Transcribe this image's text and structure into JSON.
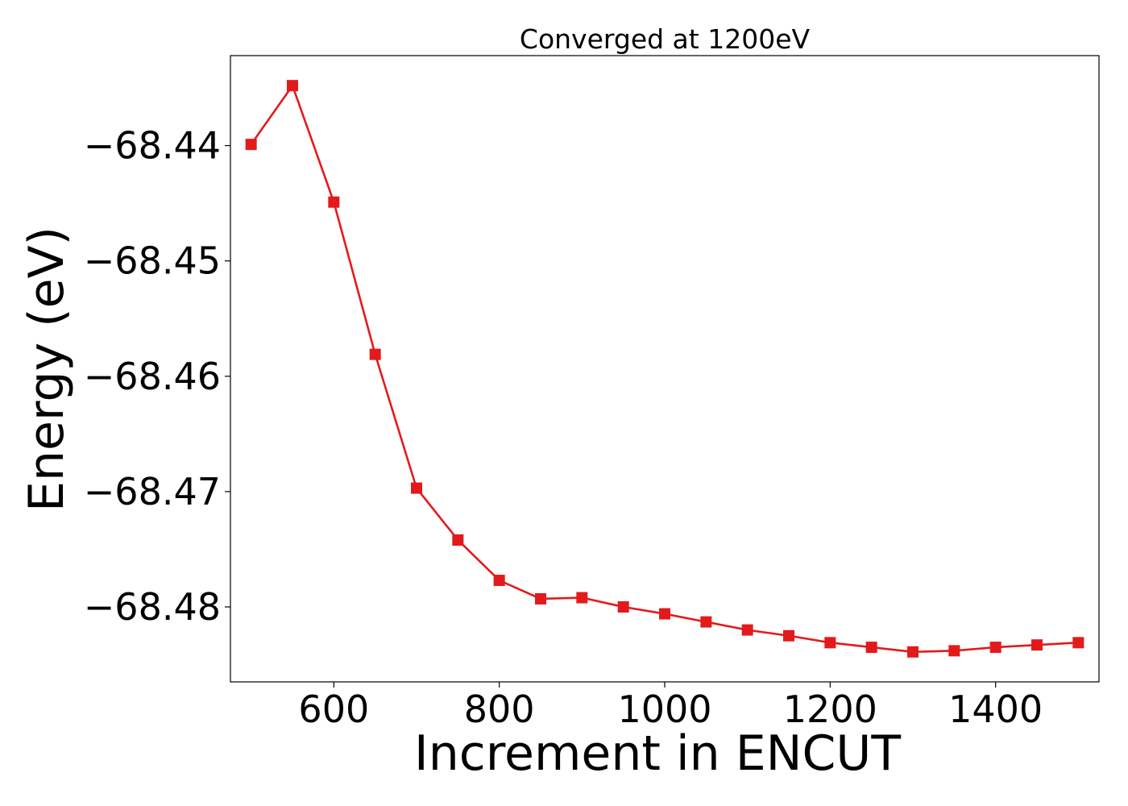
{
  "chart_data": {
    "type": "line",
    "title": "Converged at 1200eV",
    "xlabel": "Increment in ENCUT",
    "ylabel": "Energy (eV)",
    "xlim": [
      475,
      1525
    ],
    "ylim": [
      -68.4865,
      -68.4322
    ],
    "xticks": [
      600,
      800,
      1000,
      1200,
      1400
    ],
    "xtick_labels": [
      "600",
      "800",
      "1000",
      "1200",
      "1400"
    ],
    "yticks": [
      -68.44,
      -68.45,
      -68.46,
      -68.47,
      -68.48
    ],
    "ytick_labels": [
      "−68.44",
      "−68.45",
      "−68.46",
      "−68.47",
      "−68.48"
    ],
    "grid": false,
    "legend": "none",
    "series": [
      {
        "color": "#e31a1c",
        "marker": "square",
        "x": [
          500,
          550,
          600,
          650,
          700,
          750,
          800,
          850,
          900,
          950,
          1000,
          1050,
          1100,
          1150,
          1200,
          1250,
          1300,
          1350,
          1400,
          1450,
          1500
        ],
        "y": [
          -68.4399,
          -68.4348,
          -68.4449,
          -68.4581,
          -68.4697,
          -68.4742,
          -68.4777,
          -68.4793,
          -68.4792,
          -68.48,
          -68.4806,
          -68.4813,
          -68.482,
          -68.4825,
          -68.4831,
          -68.4835,
          -68.4839,
          -68.4838,
          -68.4835,
          -68.4833,
          -68.4831
        ]
      }
    ]
  }
}
